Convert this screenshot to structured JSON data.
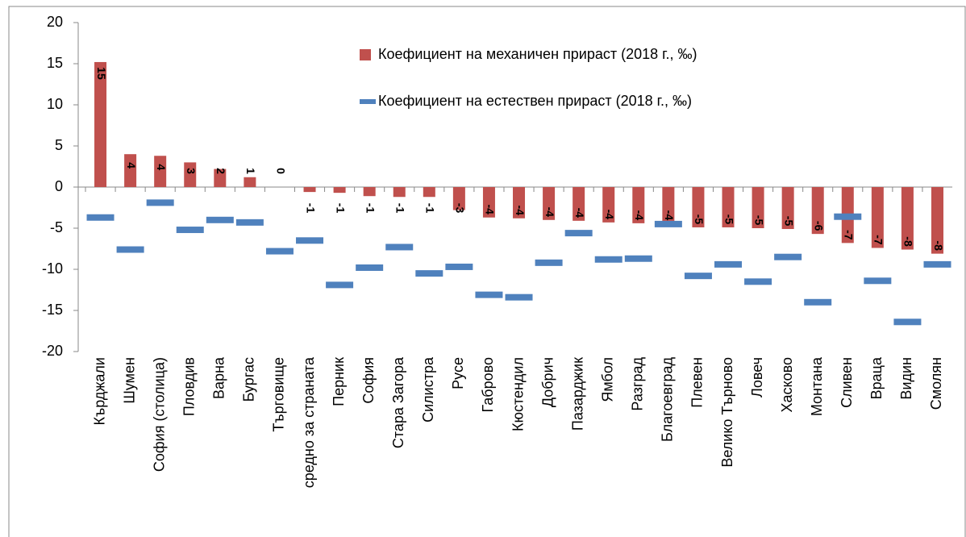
{
  "chart_data": {
    "type": "bar",
    "categories": [
      "Кърджали",
      "Шумен",
      "София (столица)",
      "Пловдив",
      "Варна",
      "Бургас",
      "Търговище",
      "средно за страната",
      "Перник",
      "София",
      "Стара Загора",
      "Силистра",
      "Русе",
      "Габрово",
      "Кюстендил",
      "Добрич",
      "Пазарджик",
      "Ямбол",
      "Разград",
      "Благоевград",
      "Плевен",
      "Велико Търново",
      "Ловеч",
      "Хасково",
      "Монтана",
      "Сливен",
      "Враца",
      "Видин",
      "Смолян"
    ],
    "series": [
      {
        "name": "Коефициент на механичен прираст (2018 г., ‰)",
        "color": "#c0504d",
        "style": "bar",
        "values": [
          15.2,
          4.0,
          3.8,
          3.0,
          2.2,
          1.2,
          0,
          -0.6,
          -0.7,
          -1.1,
          -1.2,
          -1.2,
          -2.8,
          -3.7,
          -3.8,
          -4.0,
          -4.1,
          -4.3,
          -4.4,
          -4.4,
          -4.9,
          -4.9,
          -5.0,
          -5.1,
          -5.7,
          -6.8,
          -7.4,
          -7.6,
          -8.1
        ],
        "value_labels": [
          "15",
          "4",
          "4",
          "3",
          "2",
          "1",
          "0",
          "-1",
          "-1",
          "-1",
          "-1",
          "-1",
          "-3",
          "-4",
          "-4",
          "-4",
          "-4",
          "-4",
          "-4",
          "-4",
          "-5",
          "-5",
          "-5",
          "-5",
          "-6",
          "-7",
          "-7",
          "-8",
          "-8"
        ]
      },
      {
        "name": "Коефициент на естествен прираст (2018 г., ‰)",
        "color": "#4f81bd",
        "style": "dash",
        "values": [
          -3.7,
          -7.6,
          -1.9,
          -5.2,
          -4.0,
          -4.3,
          -7.8,
          -6.5,
          -11.9,
          -9.8,
          -7.3,
          -10.5,
          -9.7,
          -13.1,
          -13.4,
          -9.2,
          -5.6,
          -8.8,
          -8.7,
          -4.5,
          -10.8,
          -9.4,
          -11.5,
          -8.5,
          -14.0,
          -3.6,
          -11.4,
          -16.4,
          -9.4
        ]
      }
    ],
    "ylim": [
      -20,
      20
    ],
    "yticks": [
      -20,
      -15,
      -10,
      -5,
      0,
      5,
      10,
      15,
      20
    ]
  }
}
